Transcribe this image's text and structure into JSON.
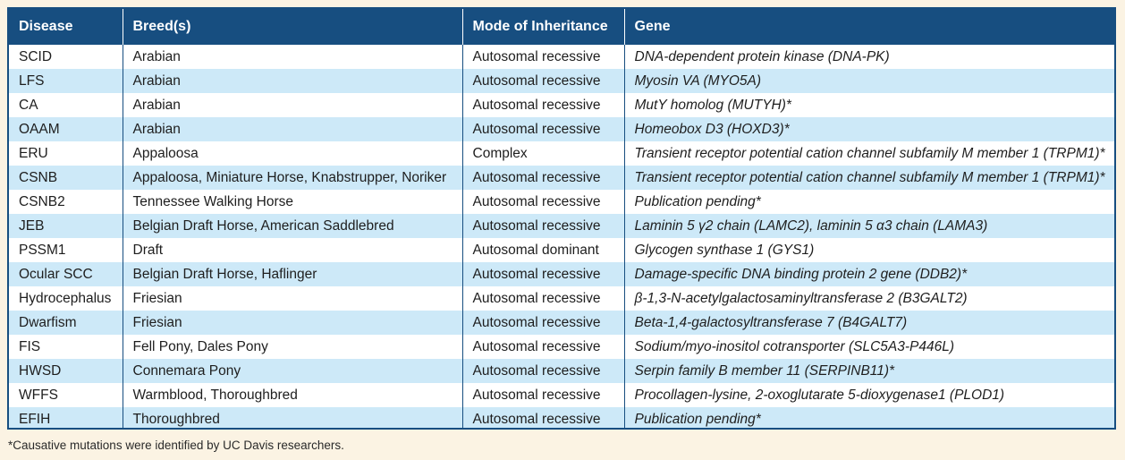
{
  "table": {
    "headers": [
      "Disease",
      "Breed(s)",
      "Mode of Inheritance",
      "Gene"
    ],
    "rows": [
      [
        "SCID",
        "Arabian",
        "Autosomal recessive",
        "DNA-dependent protein kinase (DNA-PK)"
      ],
      [
        "LFS",
        "Arabian",
        "Autosomal recessive",
        "Myosin VA (MYO5A)"
      ],
      [
        "CA",
        "Arabian",
        "Autosomal recessive",
        "MutY homolog (MUTYH)*"
      ],
      [
        "OAAM",
        "Arabian",
        "Autosomal recessive",
        "Homeobox D3 (HOXD3)*"
      ],
      [
        "ERU",
        "Appaloosa",
        "Complex",
        "Transient receptor potential cation channel subfamily M member 1 (TRPM1)*"
      ],
      [
        "CSNB",
        "Appaloosa, Miniature Horse, Knabstrupper, Noriker",
        "Autosomal recessive",
        "Transient receptor potential cation channel subfamily M member 1 (TRPM1)*"
      ],
      [
        "CSNB2",
        "Tennessee Walking Horse",
        "Autosomal recessive",
        "Publication pending*"
      ],
      [
        "JEB",
        "Belgian Draft Horse, American Saddlebred",
        "Autosomal recessive",
        "Laminin 5 γ2 chain (LAMC2), laminin 5 α3 chain (LAMA3)"
      ],
      [
        "PSSM1",
        "Draft",
        "Autosomal dominant",
        "Glycogen synthase 1 (GYS1)"
      ],
      [
        "Ocular SCC",
        "Belgian Draft Horse, Haflinger",
        "Autosomal recessive",
        "Damage-specific DNA binding protein 2 gene (DDB2)*"
      ],
      [
        "Hydrocephalus",
        "Friesian",
        "Autosomal recessive",
        "β-1,3-N-acetylgalactosaminyltransferase 2 (B3GALT2)"
      ],
      [
        "Dwarfism",
        "Friesian",
        "Autosomal recessive",
        "Beta-1,4-galactosyltransferase 7 (B4GALT7)"
      ],
      [
        "FIS",
        "Fell Pony, Dales Pony",
        "Autosomal recessive",
        "Sodium/myo-inositol cotransporter (SLC5A3-P446L)"
      ],
      [
        "HWSD",
        "Connemara Pony",
        "Autosomal recessive",
        "Serpin family B member 11 (SERPINB11)*"
      ],
      [
        "WFFS",
        "Warmblood, Thoroughbred",
        "Autosomal recessive",
        "Procollagen-lysine, 2-oxoglutarate 5-dioxygenase1 (PLOD1)"
      ],
      [
        "EFIH",
        "Thoroughbred",
        "Autosomal recessive",
        "Publication pending*"
      ]
    ]
  },
  "footnote": "*Causative mutations were identified by UC Davis researchers."
}
